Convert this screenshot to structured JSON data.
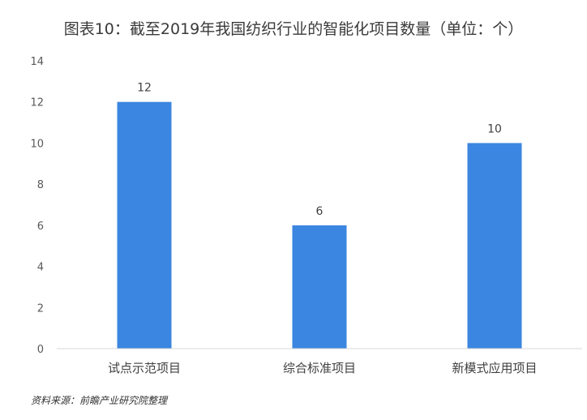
{
  "chart_data": {
    "type": "bar",
    "title": "图表10：截至2019年我国纺织行业的智能化项目数量（单位：个）",
    "categories": [
      "试点示范项目",
      "综合标准项目",
      "新模式应用项目"
    ],
    "series": [
      {
        "values": [
          12,
          6,
          10
        ]
      }
    ],
    "ylim": [
      0,
      14
    ],
    "yticks": [
      "0",
      "2",
      "4",
      "6",
      "8",
      "10",
      "12",
      "14"
    ],
    "xlabel": "",
    "ylabel": "",
    "grid": false,
    "legend": "none",
    "bar_color": "#3b86e0",
    "axis_color": "#d9d9d9"
  },
  "footer": {
    "source": "资料来源：前瞻产业研究院整理"
  }
}
